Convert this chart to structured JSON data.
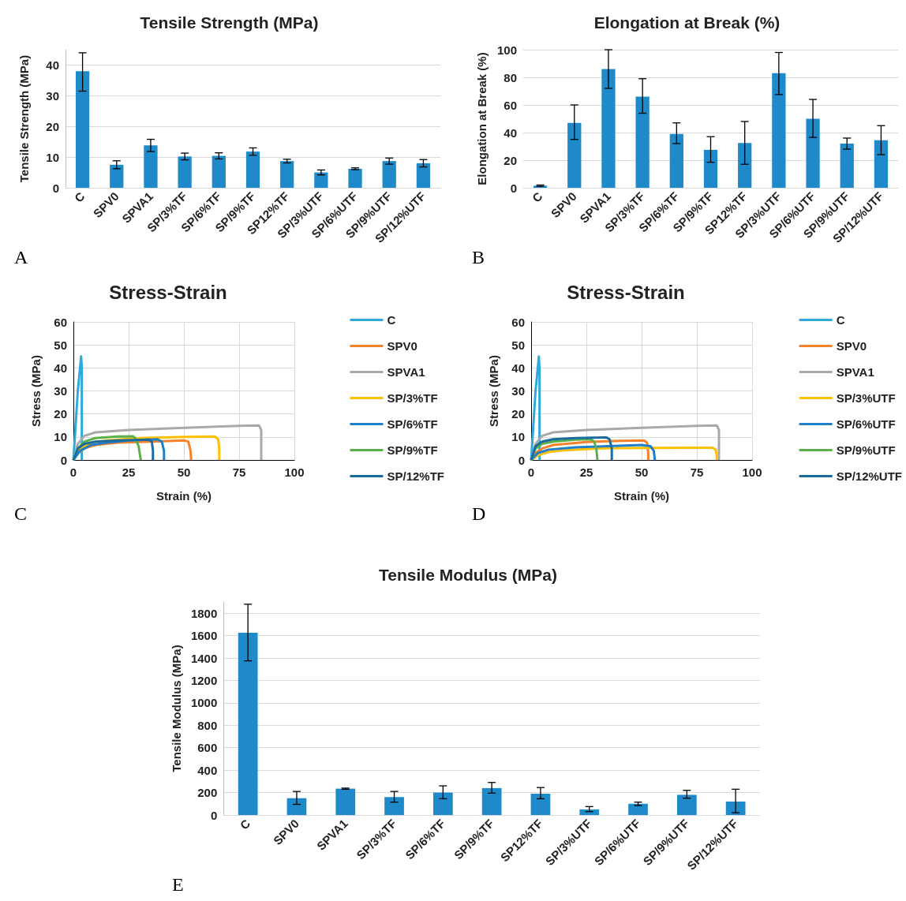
{
  "chart_data": [
    {
      "type": "bar",
      "title": "Tensile Strength (MPa)",
      "ylabel": "Tensile Strength (MPa)",
      "annotations": [
        "A"
      ],
      "categories": [
        "C",
        "SPV0",
        "SPVA1",
        "SP/3%TF",
        "SP/6%TF",
        "SP/9%TF",
        "SP12%TF",
        "SP/3%UTF",
        "SP/6%UTF",
        "SP/9%UTF",
        "SP/12%UTF"
      ],
      "values": [
        38,
        7.5,
        13.8,
        10.2,
        10.4,
        11.8,
        8.7,
        5,
        6.2,
        8.7,
        8
      ],
      "errors": [
        [
          31.5,
          44
        ],
        [
          6.2,
          8.8
        ],
        [
          11.8,
          15.8
        ],
        [
          9.1,
          11.3
        ],
        [
          9.4,
          11.4
        ],
        [
          10.6,
          13
        ],
        [
          8.1,
          9.3
        ],
        [
          4.2,
          5.8
        ],
        [
          5.9,
          6.5
        ],
        [
          7.7,
          9.7
        ],
        [
          6.8,
          9.2
        ]
      ],
      "color": "#1f8ac9",
      "ylim": [
        0,
        45
      ],
      "yticks": [
        0,
        10,
        20,
        30,
        40
      ],
      "grid": "y"
    },
    {
      "type": "bar",
      "title": "Elongation at Break (%)",
      "ylabel": "Elongation at Break (%)",
      "annotations": [
        "B"
      ],
      "categories": [
        "C",
        "SPV0",
        "SPVA1",
        "SP/3%TF",
        "SP/6%TF",
        "SP/9%TF",
        "SP12%TF",
        "SP/3%UTF",
        "SP/6%UTF",
        "SP/9%UTF",
        "SP/12%UTF"
      ],
      "values": [
        1.5,
        47,
        86,
        66,
        39,
        27.5,
        32.5,
        83,
        50,
        32,
        34.5
      ],
      "errors": [
        [
          1,
          2
        ],
        [
          35,
          60
        ],
        [
          72,
          100
        ],
        [
          54,
          79
        ],
        [
          32,
          47
        ],
        [
          18.5,
          37
        ],
        [
          17,
          48
        ],
        [
          67.5,
          98
        ],
        [
          36.5,
          64
        ],
        [
          28,
          36
        ],
        [
          24,
          45
        ]
      ],
      "color": "#1f8ac9",
      "ylim": [
        0,
        100
      ],
      "yticks": [
        0,
        20,
        40,
        60,
        80,
        100
      ],
      "grid": "y"
    },
    {
      "type": "line",
      "title": "Stress-Strain",
      "xlabel": "Strain (%)",
      "ylabel": "Stress (MPa)",
      "annotations": [
        "C"
      ],
      "series": [
        {
          "name": "C",
          "color": "#2eaadc",
          "x": [
            0,
            1,
            2,
            3,
            3.5,
            3.8,
            3.8
          ],
          "values": [
            0,
            15,
            30,
            40,
            45,
            40,
            0
          ]
        },
        {
          "name": "SPV0",
          "color": "#f5812a",
          "x": [
            0,
            2,
            5,
            10,
            20,
            35,
            50,
            52,
            53,
            53.3
          ],
          "values": [
            0,
            3,
            5,
            6.5,
            7.5,
            8,
            8.5,
            8,
            4,
            0
          ]
        },
        {
          "name": "SPVA1",
          "color": "#a9a9a9",
          "x": [
            0,
            2,
            5,
            10,
            25,
            50,
            75,
            84,
            85,
            85
          ],
          "values": [
            0,
            7,
            10.5,
            12,
            13,
            14,
            14.8,
            15,
            13,
            0
          ]
        },
        {
          "name": "SP/3%TF",
          "color": "#ffc000",
          "x": [
            0,
            3,
            8,
            15,
            30,
            50,
            64,
            65.5,
            66,
            66
          ],
          "values": [
            0,
            5,
            7.5,
            8.5,
            9.5,
            10,
            10.2,
            9,
            5,
            0
          ]
        },
        {
          "name": "SP/6%TF",
          "color": "#1f7fc8",
          "x": [
            0,
            3,
            8,
            15,
            25,
            38,
            40,
            41,
            41
          ],
          "values": [
            0,
            4,
            6.5,
            7.5,
            8.5,
            9,
            8,
            4,
            0
          ]
        },
        {
          "name": "SP/9%TF",
          "color": "#5cb14a",
          "x": [
            0,
            2,
            5,
            10,
            20,
            27,
            28,
            29.5,
            30,
            30.5
          ],
          "values": [
            0,
            5,
            8,
            9.5,
            10.2,
            10.3,
            9.5,
            6,
            3,
            0
          ]
        },
        {
          "name": "SP/12%TF",
          "color": "#1a6ca0",
          "x": [
            0,
            2,
            5,
            10,
            20,
            34,
            35.5,
            36,
            36
          ],
          "values": [
            0,
            5,
            7,
            8,
            8.5,
            8.8,
            8,
            4,
            0
          ]
        }
      ],
      "xlim": [
        0,
        100
      ],
      "xticks": [
        0,
        25,
        50,
        75,
        100
      ],
      "ylim": [
        0,
        60
      ],
      "yticks": [
        0,
        10,
        20,
        30,
        40,
        50,
        60
      ],
      "grid": true,
      "legend": "right"
    },
    {
      "type": "line",
      "title": "Stress-Strain",
      "xlabel": "Strain (%)",
      "ylabel": "Stress (MPa)",
      "annotations": [
        "D"
      ],
      "series": [
        {
          "name": "C",
          "color": "#2eaadc",
          "x": [
            0,
            1,
            2,
            3,
            3.5,
            3.8,
            3.8
          ],
          "values": [
            0,
            15,
            30,
            40,
            45,
            40,
            0
          ]
        },
        {
          "name": "SPV0",
          "color": "#f5812a",
          "x": [
            0,
            2,
            5,
            10,
            25,
            40,
            51,
            52.5,
            53,
            53
          ],
          "values": [
            0,
            3,
            5,
            6.5,
            7.8,
            8.3,
            8.5,
            7.5,
            3,
            0
          ]
        },
        {
          "name": "SPVA1",
          "color": "#a9a9a9",
          "x": [
            0,
            2,
            5,
            10,
            25,
            50,
            75,
            84,
            85,
            85
          ],
          "values": [
            0,
            7,
            10.5,
            12,
            13,
            14,
            14.8,
            15,
            13,
            0
          ]
        },
        {
          "name": "SP/3%UTF",
          "color": "#ffc000",
          "x": [
            0,
            3,
            8,
            15,
            30,
            50,
            75,
            82,
            83.5,
            84,
            84
          ],
          "values": [
            0,
            2,
            3.5,
            4.2,
            5,
            5.2,
            5.3,
            5.3,
            4.5,
            2,
            0
          ]
        },
        {
          "name": "SP/6%UTF",
          "color": "#1f7fc8",
          "x": [
            0,
            3,
            8,
            20,
            35,
            50,
            54,
            55.5,
            56
          ],
          "values": [
            0,
            3,
            4.5,
            5.5,
            6,
            6.5,
            6,
            4,
            0
          ]
        },
        {
          "name": "SP/9%UTF",
          "color": "#5cb14a",
          "x": [
            0,
            2,
            5,
            10,
            20,
            27,
            28.5,
            29.5,
            30
          ],
          "values": [
            0,
            5,
            7,
            8,
            8.8,
            9,
            8,
            5,
            0
          ]
        },
        {
          "name": "SP/12%UTF",
          "color": "#1a6ca0",
          "x": [
            0,
            2,
            5,
            10,
            20,
            34,
            35.5,
            36.5,
            36.5
          ],
          "values": [
            0,
            6,
            8,
            9,
            9.5,
            9.8,
            9,
            5,
            0
          ]
        }
      ],
      "xlim": [
        0,
        100
      ],
      "xticks": [
        0,
        25,
        50,
        75,
        100
      ],
      "ylim": [
        0,
        60
      ],
      "yticks": [
        0,
        10,
        20,
        30,
        40,
        50,
        60
      ],
      "grid": true,
      "legend": "right"
    },
    {
      "type": "bar",
      "title": "Tensile Modulus (MPa)",
      "ylabel": "Tensile Modulus (MPa)",
      "annotations": [
        "E"
      ],
      "categories": [
        "C",
        "SPV0",
        "SPVA1",
        "SP/3%TF",
        "SP/6%TF",
        "SP/9%TF",
        "SP12%TF",
        "SP/3%UTF",
        "SP/6%UTF",
        "SP/9%UTF",
        "SP/12%UTF"
      ],
      "values": [
        1625,
        150,
        235,
        160,
        200,
        240,
        190,
        50,
        100,
        180,
        120
      ],
      "errors": [
        [
          1375,
          1880
        ],
        [
          95,
          210
        ],
        [
          230,
          240
        ],
        [
          115,
          210
        ],
        [
          145,
          260
        ],
        [
          195,
          290
        ],
        [
          145,
          245
        ],
        [
          30,
          75
        ],
        [
          85,
          115
        ],
        [
          150,
          220
        ],
        [
          20,
          230
        ]
      ],
      "color": "#1f8ac9",
      "ylim": [
        0,
        1900
      ],
      "yticks": [
        0,
        200,
        400,
        600,
        800,
        1000,
        1200,
        1400,
        1600,
        1800
      ],
      "grid": "y"
    }
  ]
}
